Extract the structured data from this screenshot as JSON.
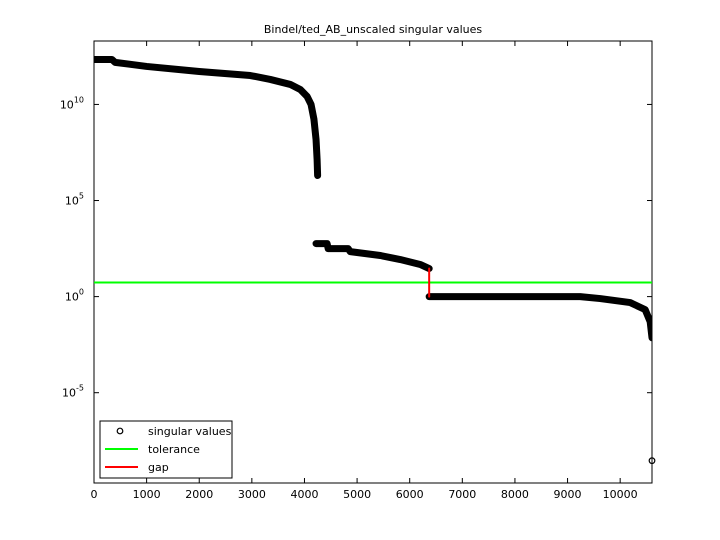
{
  "chart_data": {
    "type": "scatter",
    "title": "Bindel/ted_AB_unscaled singular values",
    "yscale": "log",
    "xlim": [
      0,
      10605
    ],
    "ylim": [
      2e-10,
      20000000000000.0
    ],
    "xticks": [
      0,
      1000,
      2000,
      3000,
      4000,
      5000,
      6000,
      7000,
      8000,
      9000,
      10000
    ],
    "yticks": [
      {
        "value": 1e-05,
        "label": "10^-5"
      },
      {
        "value": 1,
        "label": "10^0"
      },
      {
        "value": 100000,
        "label": "10^5"
      },
      {
        "value": 10000000000,
        "label": "10^10"
      }
    ],
    "legend": "lower left",
    "series": [
      {
        "name": "singular values",
        "color": "#000000",
        "x": [
          0,
          340,
          400,
          1000,
          2000,
          2970,
          3350,
          3730,
          3920,
          4050,
          4125,
          4180,
          4220,
          4240,
          4250,
          null,
          4220,
          4430,
          4450,
          4830,
          4870,
          5440,
          5820,
          6200,
          6370,
          null,
          6370,
          9240,
          9620,
          10190,
          10475,
          10570,
          10605,
          null,
          10605
        ],
        "values": [
          2190000000000.0,
          2190000000000.0,
          1550000000000.0,
          950000000000.0,
          520000000000.0,
          320000000000.0,
          200000000000.0,
          110000000000.0,
          60000000000.0,
          26000000000.0,
          10000000000.0,
          1700000000.0,
          150000000.0,
          14000000.0,
          2000000.0,
          null,
          575,
          575,
          316,
          316,
          219,
          138,
          85,
          47,
          29,
          null,
          1,
          1,
          0.79,
          0.49,
          0.21,
          0.05,
          0.0072,
          null,
          2.9e-09
        ]
      },
      {
        "name": "tolerance",
        "color": "#00ff00",
        "x": [
          0,
          10605
        ],
        "values": [
          5.4,
          5.4
        ]
      },
      {
        "name": "gap",
        "color": "#ff0000",
        "x": [
          6370,
          6370
        ],
        "values": [
          29,
          1
        ]
      }
    ]
  }
}
